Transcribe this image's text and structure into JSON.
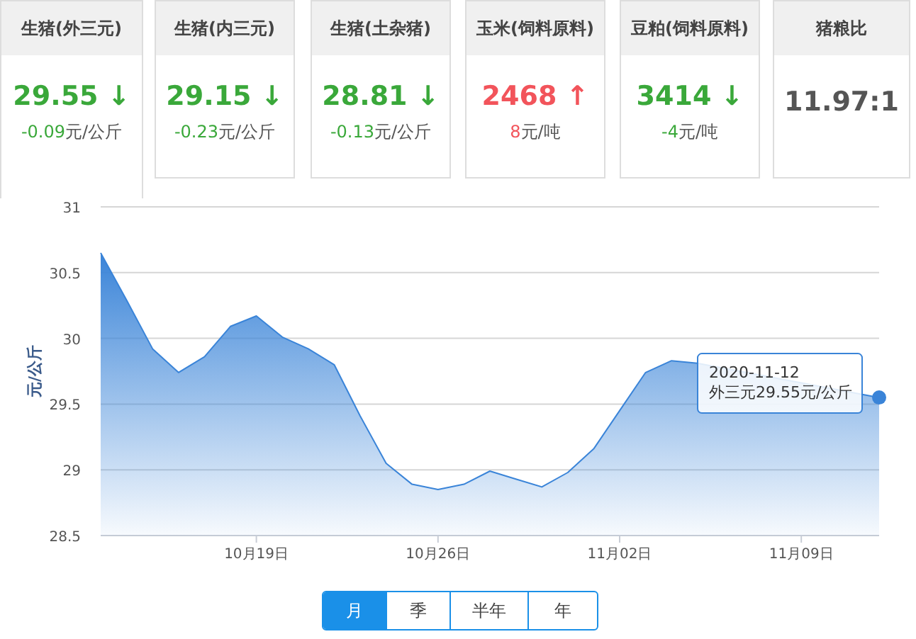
{
  "chart_data": [
    {
      "type": "other",
      "title": "生猪(外三元)",
      "annotations": [
        "29.55 ↓",
        "-0.09元/公斤"
      ],
      "color": "#3aa83a"
    },
    {
      "type": "other",
      "title": "生猪(内三元)",
      "annotations": [
        "29.15 ↓",
        "-0.23元/公斤"
      ],
      "color": "#3aa83a"
    },
    {
      "type": "other",
      "title": "生猪(土杂猪)",
      "annotations": [
        "28.81 ↓",
        "-0.13元/公斤"
      ],
      "color": "#3aa83a"
    },
    {
      "type": "other",
      "title": "玉米(饲料原料)",
      "annotations": [
        "2468 ↑",
        "8元/吨"
      ],
      "color": "#f2545b"
    },
    {
      "type": "other",
      "title": "豆粕(饲料原料)",
      "annotations": [
        "3414 ↓",
        "-4元/吨"
      ],
      "color": "#3aa83a"
    },
    {
      "type": "other",
      "title": "猪粮比",
      "annotations": [
        "11.97:1"
      ],
      "color": "#555555"
    },
    {
      "type": "area",
      "ylabel": "元/公斤",
      "color": "#3a84d8",
      "grid": "y",
      "x": [
        "2020-10-13",
        "2020-10-14",
        "2020-10-15",
        "2020-10-16",
        "2020-10-17",
        "2020-10-18",
        "2020-10-19",
        "2020-10-20",
        "2020-10-21",
        "2020-10-22",
        "2020-10-23",
        "2020-10-24",
        "2020-10-25",
        "2020-10-26",
        "2020-10-27",
        "2020-10-28",
        "2020-10-29",
        "2020-10-30",
        "2020-10-31",
        "2020-11-01",
        "2020-11-02",
        "2020-11-03",
        "2020-11-04",
        "2020-11-05",
        "2020-11-06",
        "2020-11-07",
        "2020-11-08",
        "2020-11-09",
        "2020-11-10",
        "2020-11-11",
        "2020-11-12"
      ],
      "values": [
        30.65,
        30.29,
        29.92,
        29.74,
        29.86,
        30.09,
        30.17,
        30.01,
        29.92,
        29.8,
        29.41,
        29.05,
        28.89,
        28.85,
        28.89,
        28.99,
        28.93,
        28.87,
        28.98,
        29.16,
        29.45,
        29.74,
        29.83,
        29.81,
        null,
        null,
        null,
        null,
        null,
        null,
        29.55
      ],
      "xlim": [
        "2020-10-13",
        "2020-11-12"
      ],
      "xticks": [
        {
          "value": "2020-10-19",
          "label": "10月19日"
        },
        {
          "value": "2020-10-26",
          "label": "10月26日"
        },
        {
          "value": "2020-11-02",
          "label": "11月02日"
        },
        {
          "value": "2020-11-09",
          "label": "11月09日"
        }
      ],
      "ylim": [
        28.5,
        31
      ],
      "yticks": [
        28.5,
        29,
        29.5,
        30,
        30.5,
        31
      ],
      "annotations": [
        {
          "text": "2020-11-12\n外三元29.55元/公斤",
          "x": "2020-11-12",
          "y": 29.55
        },
        "月",
        "季",
        "半年",
        "年"
      ]
    }
  ]
}
